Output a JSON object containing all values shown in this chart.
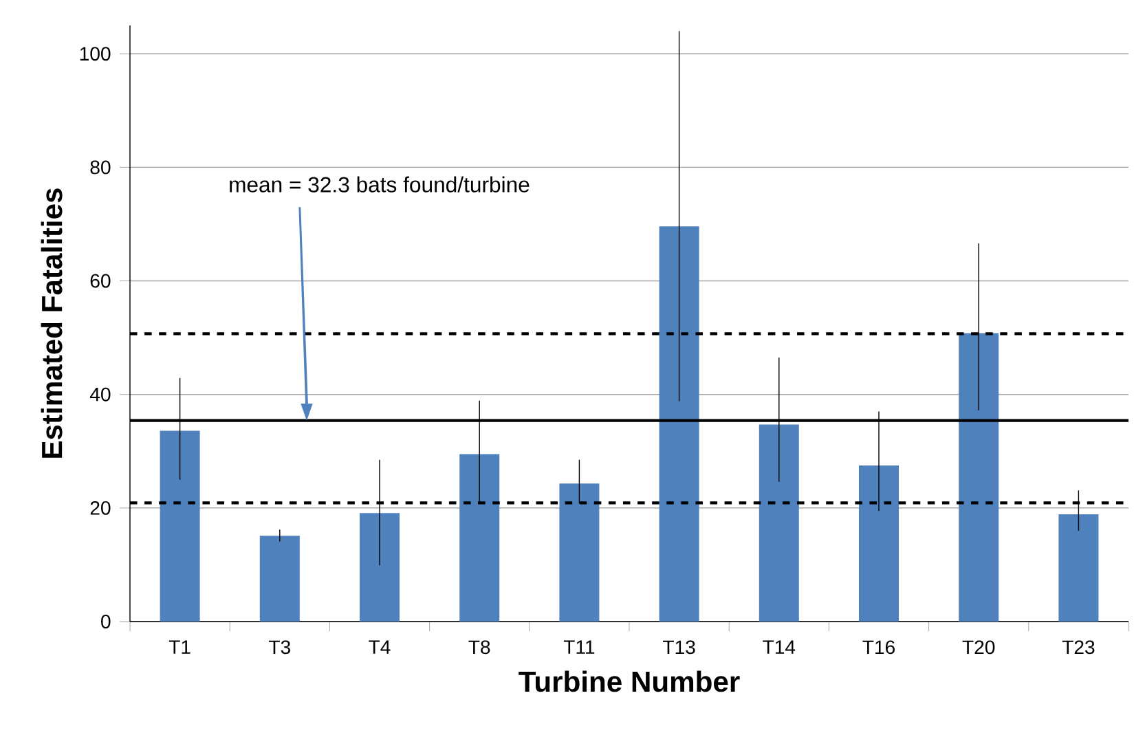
{
  "chart_data": {
    "type": "bar",
    "xlabel": "Turbine Number",
    "ylabel": "Estimated Fatalities",
    "categories": [
      "T1",
      "T3",
      "T4",
      "T8",
      "T11",
      "T13",
      "T14",
      "T16",
      "T20",
      "T23"
    ],
    "values": [
      33.6,
      15.1,
      19.1,
      29.5,
      24.3,
      69.6,
      34.7,
      27.5,
      50.8,
      18.9
    ],
    "errors": [
      [
        25.0,
        42.9
      ],
      [
        14.1,
        16.2
      ],
      [
        9.9,
        28.5
      ],
      [
        21.1,
        38.9
      ],
      [
        20.8,
        28.5
      ],
      [
        38.8,
        104.0
      ],
      [
        24.6,
        46.5
      ],
      [
        19.5,
        37.0
      ],
      [
        37.2,
        66.6
      ],
      [
        16.0,
        23.1
      ]
    ],
    "color": "#4f81bd",
    "ylim": [
      0,
      105
    ],
    "yticks": [
      0,
      20,
      40,
      60,
      80,
      100
    ],
    "grid": "y",
    "ref_lines": [
      {
        "axis": "y",
        "value": 35.4,
        "color": "#000000",
        "line_style": "solid"
      },
      {
        "axis": "y",
        "value": 50.7,
        "color": "#000000",
        "line_style": "dashed"
      },
      {
        "axis": "y",
        "value": 20.9,
        "color": "#000000",
        "line_style": "dashed"
      }
    ],
    "annotations": [
      "mean = 32.3 bats found/turbine"
    ]
  }
}
